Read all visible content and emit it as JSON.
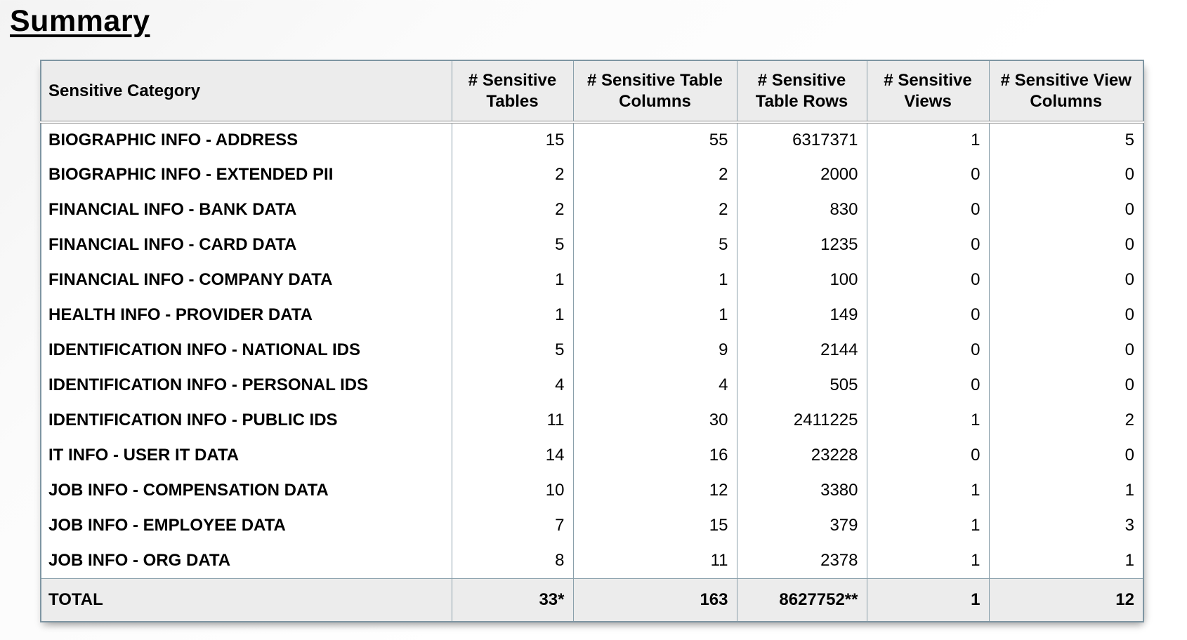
{
  "page": {
    "title": "Summary"
  },
  "colors": {
    "header_background": "#ececec",
    "total_row_background": "#ececec",
    "grid_border": "#8aa0ab",
    "outer_border": "#7e95a2",
    "header_rule": "#8e8e8e",
    "text": "#000000"
  },
  "table": {
    "columns": [
      {
        "label": "Sensitive Category"
      },
      {
        "label": "# Sensitive Tables"
      },
      {
        "label": "# Sensitive Table Columns"
      },
      {
        "label": "# Sensitive Table Rows"
      },
      {
        "label": "# Sensitive Views"
      },
      {
        "label": "# Sensitive View Columns"
      }
    ],
    "rows": [
      {
        "category": "BIOGRAPHIC INFO - ADDRESS",
        "tables": "15",
        "table_columns": "55",
        "table_rows": "6317371",
        "views": "1",
        "view_columns": "5"
      },
      {
        "category": "BIOGRAPHIC INFO - EXTENDED PII",
        "tables": "2",
        "table_columns": "2",
        "table_rows": "2000",
        "views": "0",
        "view_columns": "0"
      },
      {
        "category": "FINANCIAL INFO - BANK DATA",
        "tables": "2",
        "table_columns": "2",
        "table_rows": "830",
        "views": "0",
        "view_columns": "0"
      },
      {
        "category": "FINANCIAL INFO - CARD DATA",
        "tables": "5",
        "table_columns": "5",
        "table_rows": "1235",
        "views": "0",
        "view_columns": "0"
      },
      {
        "category": "FINANCIAL INFO - COMPANY DATA",
        "tables": "1",
        "table_columns": "1",
        "table_rows": "100",
        "views": "0",
        "view_columns": "0"
      },
      {
        "category": "HEALTH INFO - PROVIDER DATA",
        "tables": "1",
        "table_columns": "1",
        "table_rows": "149",
        "views": "0",
        "view_columns": "0"
      },
      {
        "category": "IDENTIFICATION INFO - NATIONAL IDS",
        "tables": "5",
        "table_columns": "9",
        "table_rows": "2144",
        "views": "0",
        "view_columns": "0"
      },
      {
        "category": "IDENTIFICATION INFO - PERSONAL IDS",
        "tables": "4",
        "table_columns": "4",
        "table_rows": "505",
        "views": "0",
        "view_columns": "0"
      },
      {
        "category": "IDENTIFICATION INFO - PUBLIC IDS",
        "tables": "11",
        "table_columns": "30",
        "table_rows": "2411225",
        "views": "1",
        "view_columns": "2"
      },
      {
        "category": "IT INFO - USER IT DATA",
        "tables": "14",
        "table_columns": "16",
        "table_rows": "23228",
        "views": "0",
        "view_columns": "0"
      },
      {
        "category": "JOB INFO - COMPENSATION DATA",
        "tables": "10",
        "table_columns": "12",
        "table_rows": "3380",
        "views": "1",
        "view_columns": "1"
      },
      {
        "category": "JOB INFO - EMPLOYEE DATA",
        "tables": "7",
        "table_columns": "15",
        "table_rows": "379",
        "views": "1",
        "view_columns": "3"
      },
      {
        "category": "JOB INFO - ORG DATA",
        "tables": "8",
        "table_columns": "11",
        "table_rows": "2378",
        "views": "1",
        "view_columns": "1"
      }
    ],
    "total": {
      "category": "TOTAL",
      "tables": "33*",
      "table_columns": "163",
      "table_rows": "8627752**",
      "views": "1",
      "view_columns": "12"
    }
  }
}
